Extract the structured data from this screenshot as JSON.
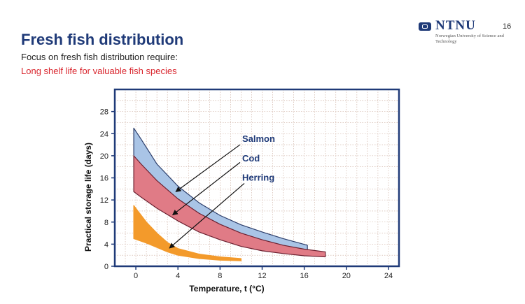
{
  "slide": {
    "title": "Fresh fish distribution",
    "subtitle": "Focus on fresh fish distribution require:",
    "subtitle_red": "Long shelf life for valuable fish species",
    "page_number": "16"
  },
  "logo": {
    "name": "NTNU",
    "subtitle": "Norwegian University of Science and Technology"
  },
  "colors": {
    "title": "#1f3a78",
    "salmon": "#a9c4e6",
    "cod": "#e07b86",
    "herring": "#f39a2b",
    "frame": "#1f3a78",
    "annotation_text": "#1f3a78"
  },
  "chart_data": {
    "type": "area",
    "xlabel": "Temperature, t (°C)",
    "ylabel": "Practical storage life (days)",
    "xlim": [
      -2,
      25
    ],
    "ylim": [
      0,
      32
    ],
    "xticks": [
      0,
      4,
      8,
      12,
      16,
      20,
      24
    ],
    "yticks": [
      0,
      4,
      8,
      12,
      16,
      20,
      24,
      28
    ],
    "grid": true,
    "series": [
      {
        "name": "Salmon",
        "upper": [
          [
            -0.2,
            25
          ],
          [
            0.5,
            23
          ],
          [
            2,
            18.5
          ],
          [
            4,
            14.5
          ],
          [
            6,
            11.5
          ],
          [
            8,
            9.2
          ],
          [
            10,
            7.5
          ],
          [
            12,
            6.2
          ],
          [
            14,
            5
          ],
          [
            16.3,
            3.8
          ]
        ],
        "lower": [
          [
            -0.2,
            18
          ],
          [
            0.5,
            17
          ],
          [
            2,
            13.5
          ],
          [
            4,
            10.5
          ],
          [
            6,
            8
          ],
          [
            8,
            6.2
          ],
          [
            10,
            4.8
          ],
          [
            12,
            3.8
          ],
          [
            14,
            3.2
          ],
          [
            16.3,
            2.8
          ]
        ]
      },
      {
        "name": "Cod",
        "upper": [
          [
            -0.2,
            20
          ],
          [
            0.5,
            18.5
          ],
          [
            2,
            15.5
          ],
          [
            4,
            12.2
          ],
          [
            6,
            9.6
          ],
          [
            8,
            7.6
          ],
          [
            10,
            6
          ],
          [
            12,
            4.8
          ],
          [
            14,
            3.8
          ],
          [
            16,
            3.1
          ],
          [
            18,
            2.6
          ]
        ],
        "lower": [
          [
            -0.2,
            13.5
          ],
          [
            0.5,
            12.5
          ],
          [
            2,
            10.5
          ],
          [
            4,
            8.2
          ],
          [
            6,
            6.2
          ],
          [
            8,
            4.8
          ],
          [
            10,
            3.6
          ],
          [
            12,
            2.8
          ],
          [
            14,
            2.3
          ],
          [
            16,
            1.9
          ],
          [
            18,
            1.7
          ]
        ]
      },
      {
        "name": "Herring",
        "upper": [
          [
            -0.2,
            11
          ],
          [
            0.2,
            10
          ],
          [
            1,
            8
          ],
          [
            2,
            6
          ],
          [
            3,
            4.3
          ],
          [
            4,
            3.2
          ],
          [
            6,
            2.2
          ],
          [
            8,
            1.7
          ],
          [
            10,
            1.4
          ]
        ],
        "lower": [
          [
            -0.2,
            5
          ],
          [
            1,
            4.2
          ],
          [
            2,
            3.4
          ],
          [
            3,
            2.6
          ],
          [
            4,
            2
          ],
          [
            6,
            1.4
          ],
          [
            8,
            1.1
          ],
          [
            10,
            1
          ]
        ]
      }
    ],
    "annotations": [
      {
        "label": "Salmon",
        "text_at": [
          10.1,
          22.5
        ],
        "arrow_from": [
          9.9,
          22
        ],
        "arrow_to": [
          3.8,
          13.5
        ]
      },
      {
        "label": "Cod",
        "text_at": [
          10.1,
          19
        ],
        "arrow_from": [
          9.9,
          18.8
        ],
        "arrow_to": [
          3.5,
          9.3
        ]
      },
      {
        "label": "Herring",
        "text_at": [
          10.1,
          15.5
        ],
        "arrow_from": [
          10.3,
          15.0
        ],
        "arrow_to": [
          3.2,
          3.3
        ]
      }
    ]
  }
}
